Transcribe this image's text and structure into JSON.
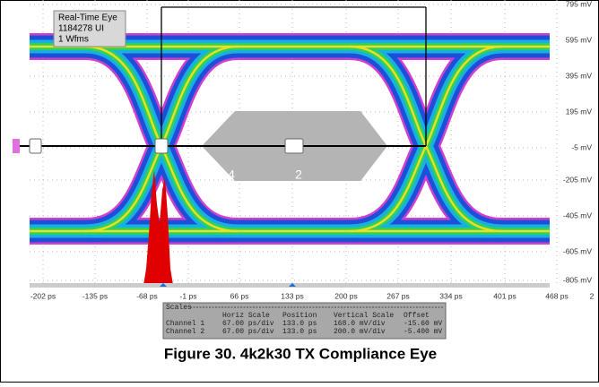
{
  "info_box": [
    "Real-Time Eye",
    "1184278 UI",
    "1 Wfms"
  ],
  "y_axis_labels": [
    "795 mV",
    "595 mV",
    "395 mV",
    "195 mV",
    "-5 mV",
    "-205 mV",
    "-405 mV",
    "-605 mV",
    "-805 mV"
  ],
  "x_axis_labels": [
    "-202 ps",
    "-135 ps",
    "-68 ps",
    "-1 ps",
    "66 ps",
    "133 ps",
    "200 ps",
    "267 ps",
    "334 ps",
    "401 ps",
    "468 ps",
    "2"
  ],
  "mask_labels": [
    "4",
    "2"
  ],
  "scales": {
    "title": "Scales",
    "header": [
      "Horiz Scale",
      "Position",
      "Vertical Scale",
      "Offset"
    ],
    "rows": [
      [
        "Channel 1",
        "67.00 ps/div",
        "133.0 ps",
        "168.0 mV/div",
        "-15.60 mV"
      ],
      [
        "Channel 2",
        "67.00 ps/div",
        "133.0 ps",
        "200.0 mV/div",
        "-5.400 mV"
      ]
    ]
  },
  "caption": "Figure 30. 4k2k30 TX Compliance Eye"
}
